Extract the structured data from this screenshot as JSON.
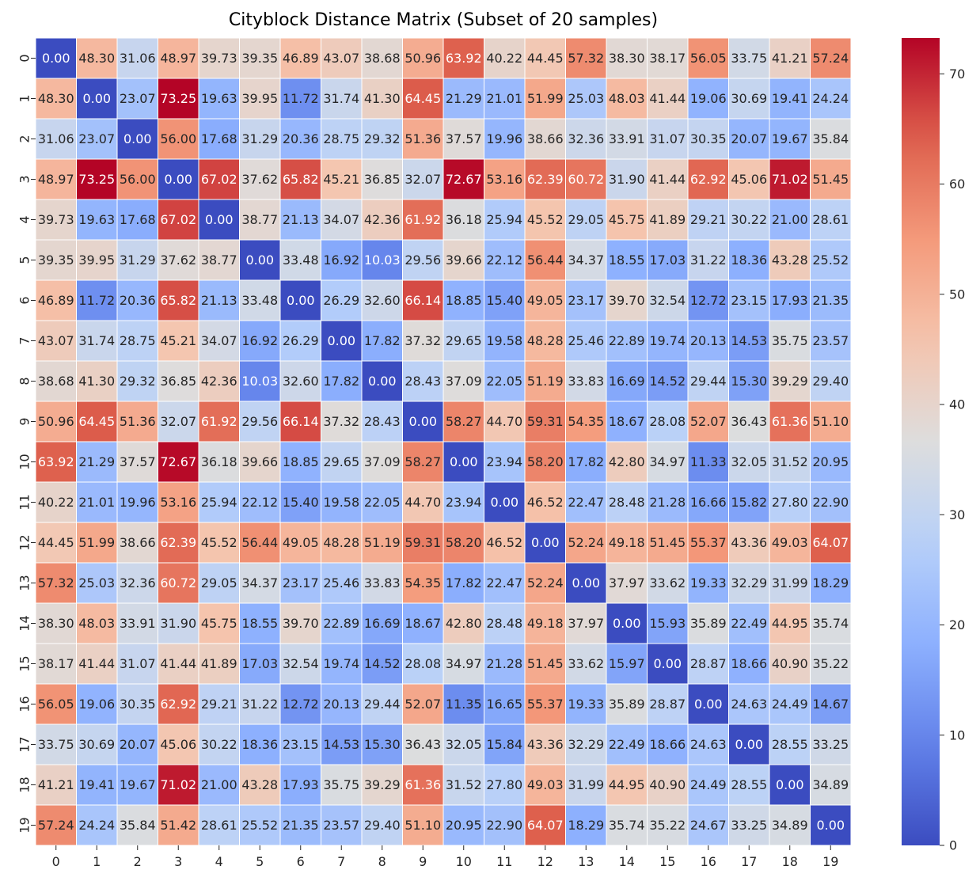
{
  "chart_data": {
    "type": "heatmap",
    "title": "Cityblock Distance Matrix (Subset of 20 samples)",
    "xlabel": "",
    "ylabel": "",
    "row_labels": [
      "0",
      "1",
      "2",
      "3",
      "4",
      "5",
      "6",
      "7",
      "8",
      "9",
      "10",
      "11",
      "12",
      "13",
      "14",
      "15",
      "16",
      "17",
      "18",
      "19"
    ],
    "col_labels": [
      "0",
      "1",
      "2",
      "3",
      "4",
      "5",
      "6",
      "7",
      "8",
      "9",
      "10",
      "11",
      "12",
      "13",
      "14",
      "15",
      "16",
      "17",
      "18",
      "19"
    ],
    "values": [
      [
        0.0,
        48.3,
        31.06,
        48.97,
        39.73,
        39.35,
        46.89,
        43.07,
        38.68,
        50.96,
        63.92,
        40.22,
        44.45,
        57.32,
        38.3,
        38.17,
        56.05,
        33.75,
        41.21,
        57.24
      ],
      [
        48.3,
        0.0,
        23.07,
        73.25,
        19.63,
        39.95,
        11.72,
        31.74,
        41.3,
        64.45,
        21.29,
        21.01,
        51.99,
        25.03,
        48.03,
        41.44,
        19.06,
        30.69,
        19.41,
        24.24
      ],
      [
        31.06,
        23.07,
        0.0,
        56.0,
        17.68,
        31.29,
        20.36,
        28.75,
        29.32,
        51.36,
        37.57,
        19.96,
        38.66,
        32.36,
        33.91,
        31.07,
        30.35,
        20.07,
        19.67,
        35.84
      ],
      [
        48.97,
        73.25,
        56.0,
        0.0,
        67.02,
        37.62,
        65.82,
        45.21,
        36.85,
        32.07,
        72.67,
        53.16,
        62.39,
        60.72,
        31.9,
        41.44,
        62.92,
        45.06,
        71.02,
        51.45
      ],
      [
        39.73,
        19.63,
        17.68,
        67.02,
        0.0,
        38.77,
        21.13,
        34.07,
        42.36,
        61.92,
        36.18,
        25.94,
        45.52,
        29.05,
        45.75,
        41.89,
        29.21,
        30.22,
        21.0,
        28.61
      ],
      [
        39.35,
        39.95,
        31.29,
        37.62,
        38.77,
        0.0,
        33.48,
        16.92,
        10.03,
        29.56,
        39.66,
        22.12,
        56.44,
        34.37,
        18.55,
        17.03,
        31.22,
        18.36,
        43.28,
        25.52
      ],
      [
        46.89,
        11.72,
        20.36,
        65.82,
        21.13,
        33.48,
        0.0,
        26.29,
        32.6,
        66.14,
        18.85,
        15.4,
        49.05,
        23.17,
        39.7,
        32.54,
        12.72,
        23.15,
        17.93,
        21.35
      ],
      [
        43.07,
        31.74,
        28.75,
        45.21,
        34.07,
        16.92,
        26.29,
        0.0,
        17.82,
        37.32,
        29.65,
        19.58,
        48.28,
        25.46,
        22.89,
        19.74,
        20.13,
        14.53,
        35.75,
        23.57
      ],
      [
        38.68,
        41.3,
        29.32,
        36.85,
        42.36,
        10.03,
        32.6,
        17.82,
        0.0,
        28.43,
        37.09,
        22.05,
        51.19,
        33.83,
        16.69,
        14.52,
        29.44,
        15.3,
        39.29,
        29.4
      ],
      [
        50.96,
        64.45,
        51.36,
        32.07,
        61.92,
        29.56,
        66.14,
        37.32,
        28.43,
        0.0,
        58.27,
        44.7,
        59.31,
        54.35,
        18.67,
        28.08,
        52.07,
        36.43,
        61.36,
        51.1
      ],
      [
        63.92,
        21.29,
        37.57,
        72.67,
        36.18,
        39.66,
        18.85,
        29.65,
        37.09,
        58.27,
        0.0,
        23.94,
        58.2,
        17.82,
        42.8,
        34.97,
        11.33,
        32.05,
        31.52,
        20.95
      ],
      [
        40.22,
        21.01,
        19.96,
        53.16,
        25.94,
        22.12,
        15.4,
        19.58,
        22.05,
        44.7,
        23.94,
        0.0,
        46.52,
        22.47,
        28.48,
        21.28,
        16.66,
        15.82,
        27.8,
        22.9
      ],
      [
        44.45,
        51.99,
        38.66,
        62.39,
        45.52,
        56.44,
        49.05,
        48.28,
        51.19,
        59.31,
        58.2,
        46.52,
        0.0,
        52.24,
        49.18,
        51.45,
        55.37,
        43.36,
        49.03,
        64.07
      ],
      [
        57.32,
        25.03,
        32.36,
        60.72,
        29.05,
        34.37,
        23.17,
        25.46,
        33.83,
        54.35,
        17.82,
        22.47,
        52.24,
        0.0,
        37.97,
        33.62,
        19.33,
        32.29,
        31.99,
        18.29
      ],
      [
        38.3,
        48.03,
        33.91,
        31.9,
        45.75,
        18.55,
        39.7,
        22.89,
        16.69,
        18.67,
        42.8,
        28.48,
        49.18,
        37.97,
        0.0,
        15.93,
        35.89,
        22.49,
        44.95,
        35.74
      ],
      [
        38.17,
        41.44,
        31.07,
        41.44,
        41.89,
        17.03,
        32.54,
        19.74,
        14.52,
        28.08,
        34.97,
        21.28,
        51.45,
        33.62,
        15.97,
        0.0,
        28.87,
        18.66,
        40.9,
        35.22
      ],
      [
        56.05,
        19.06,
        30.35,
        62.92,
        29.21,
        31.22,
        12.72,
        20.13,
        29.44,
        52.07,
        11.35,
        16.65,
        55.37,
        19.33,
        35.89,
        28.87,
        0.0,
        24.63,
        24.49,
        14.67
      ],
      [
        33.75,
        30.69,
        20.07,
        45.06,
        30.22,
        18.36,
        23.15,
        14.53,
        15.3,
        36.43,
        32.05,
        15.84,
        43.36,
        32.29,
        22.49,
        18.66,
        24.63,
        0.0,
        28.55,
        33.25
      ],
      [
        41.21,
        19.41,
        19.67,
        71.02,
        21.0,
        43.28,
        17.93,
        35.75,
        39.29,
        61.36,
        31.52,
        27.8,
        49.03,
        31.99,
        44.95,
        40.9,
        24.49,
        28.55,
        0.0,
        34.89
      ],
      [
        57.24,
        24.24,
        35.84,
        51.42,
        28.61,
        25.52,
        21.35,
        23.57,
        29.4,
        51.1,
        20.95,
        22.9,
        64.07,
        18.29,
        35.74,
        35.22,
        24.67,
        33.25,
        34.89,
        0.0
      ]
    ],
    "value_format": "0.00",
    "colormap": "coolwarm",
    "vmin": 0,
    "vmax": 73.25,
    "colorbar": {
      "ticks": [
        0,
        10,
        20,
        30,
        40,
        50,
        60,
        70
      ],
      "tick_labels": [
        "0",
        "10",
        "20",
        "30",
        "40",
        "50",
        "60",
        "70"
      ],
      "placement": "right"
    },
    "cell_border_color": "#ffffff",
    "grid": false
  }
}
